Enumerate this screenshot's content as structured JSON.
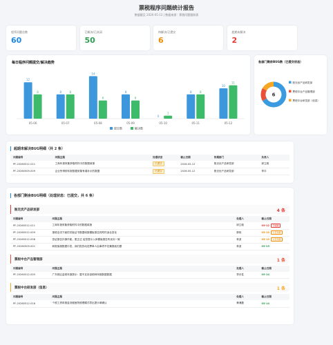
{
  "header": {
    "title": "票税程序问题统计报告",
    "subtitle": "数据截至 2026-05-13 | 数据来源：票税问题跟踪表"
  },
  "kpis": [
    {
      "label": "程序问题总数",
      "value": 60,
      "color": "#1e88e5"
    },
    {
      "label": "已解决/已关闭",
      "value": 50,
      "color": "#2e9d4f"
    },
    {
      "label": "待解决/已提交",
      "value": 6,
      "color": "#f08c00"
    },
    {
      "label": "超期未解决",
      "value": 2,
      "color": "#e53935"
    }
  ],
  "chart_data": [
    {
      "type": "bar",
      "title": "每日程序问题提交/解决趋势",
      "categories": [
        "05-06",
        "05-07",
        "05-08",
        "05-09",
        "05-10",
        "05-11",
        "05-12"
      ],
      "ylim": [
        0,
        15
      ],
      "series": [
        {
          "name": "提交数",
          "color": "#3d97dd",
          "values": [
            12,
            8,
            14,
            8,
            0,
            8,
            10
          ]
        },
        {
          "name": "解决数",
          "color": "#3dbb6a",
          "values": [
            8,
            8,
            6,
            6,
            1,
            8,
            11
          ]
        }
      ]
    },
    {
      "type": "pie",
      "title": "各部门剩余BUG数（已提交状态）",
      "center_value": 6,
      "categories": [
        "账无优产品研发部",
        "票税中台产品管理部",
        "票税中台研发部（信息）"
      ],
      "values": [
        4,
        1,
        1
      ],
      "colors": [
        "#3b9be0",
        "#e8503a",
        "#f5a623"
      ]
    }
  ],
  "overdue": {
    "title": "超期未解决BUG明细（共 2 条）",
    "headers": [
      "问题编号",
      "问题主题",
      "处理状态",
      "截止日期",
      "所属部门",
      "负责人"
    ],
    "rows": [
      [
        "PF-20260512-011",
        "工商年报采集获取附件中的数据填报",
        "已提交",
        "2026-05-12",
        "账无优产品研发部",
        "邱立毅"
      ],
      [
        "PF-20260509-009",
        "企业所得税年报数据采集有增补示的数据",
        "已提交",
        "2026-05-12",
        "账无优产品研发部",
        "李平"
      ]
    ]
  },
  "departments": {
    "title": "各部门剩余BUG明细（处理状态：已提交，共 6 条）",
    "headers": [
      "问题编号",
      "问题主题",
      "处理人",
      "截止日期"
    ],
    "groups": [
      {
        "name": "账无优产品研发部",
        "count": "4 条",
        "color": "#e53935",
        "rows": [
          {
            "cells": [
              "PF-20260512-011",
              "工商年报采集获取附件中的数据填报",
              "邱立毅",
              "05-12"
            ],
            "tag": "已超期",
            "due_color": "#e53935"
          },
          {
            "cells": [
              "PF-20260512-009",
              "报税全流下面的关板证书数据填报模板报告的附件适合变化",
              "郭岗",
              "05-13"
            ],
            "tag": "今日到期",
            "due_color": "#f08c00"
          },
          {
            "cells": [
              "PF-20260512-008",
              "查证报告外操作能，更正过 给您提示入体模版报告所优化一致",
              "林波",
              "05-13"
            ],
            "tag": "今日到期",
            "due_color": "#f08c00"
          },
          {
            "cells": [
              "PF-20260509-001",
              "和报保报数据中发，我们批的动态票单人后事项不仅兼报面无题",
              "林波",
              "05-25"
            ],
            "due_color": "#2e9d4f"
          }
        ]
      },
      {
        "name": "票税中台产品管理部",
        "count": "1 条",
        "color": "#e8503a",
        "rows": [
          {
            "cells": [
              "PF-20260512-005",
              "广东税区金税年报提示：暂不支持该税种申报数据数据",
              "李天性",
              "05-14"
            ],
            "due_color": "#2e9d4f"
          }
        ]
      },
      {
        "name": "票税中台研发部（信息）",
        "count": "1 条",
        "color": "#f5a623",
        "rows": [
          {
            "cells": [
              "PF-20260512-016",
              "个税工资申报金流程医院税理模式导出提示单确认",
              "黄涌磊",
              "05-14"
            ],
            "due_color": "#2e9d4f"
          }
        ]
      }
    ]
  }
}
